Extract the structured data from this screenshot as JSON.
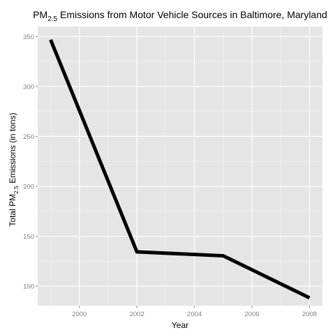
{
  "chart_data": {
    "type": "line",
    "title": {
      "prefix": "PM",
      "subscript": "2.5",
      "suffix": " Emissions from Motor Vehicle Sources in Baltimore, Maryland"
    },
    "xlabel": "Year",
    "ylabel": {
      "prefix": "Total PM",
      "subscript": "2.5",
      "suffix": " Emissions (in tons)"
    },
    "x": [
      1999,
      2002,
      2005,
      2008
    ],
    "series": [
      {
        "values": [
          346.8,
          134.3,
          130.4,
          88.3
        ]
      }
    ],
    "xlim": [
      1998.55,
      2008.45
    ],
    "ylim": [
      80.4,
      360.0
    ],
    "x_ticks": [
      2000,
      2002,
      2004,
      2006,
      2008
    ],
    "x_tick_labels": [
      "2000",
      "2002",
      "2004",
      "2006",
      "2008"
    ],
    "y_ticks": [
      100,
      150,
      200,
      250,
      300,
      350
    ],
    "y_tick_labels": [
      "100",
      "150",
      "200",
      "250",
      "300",
      "350"
    ],
    "grid": true,
    "legend": "none",
    "colors": {
      "panel": "#e5e5e5",
      "grid_major": "#ffffff",
      "grid_minor": "#f2f2f2",
      "line": "#000000"
    }
  }
}
